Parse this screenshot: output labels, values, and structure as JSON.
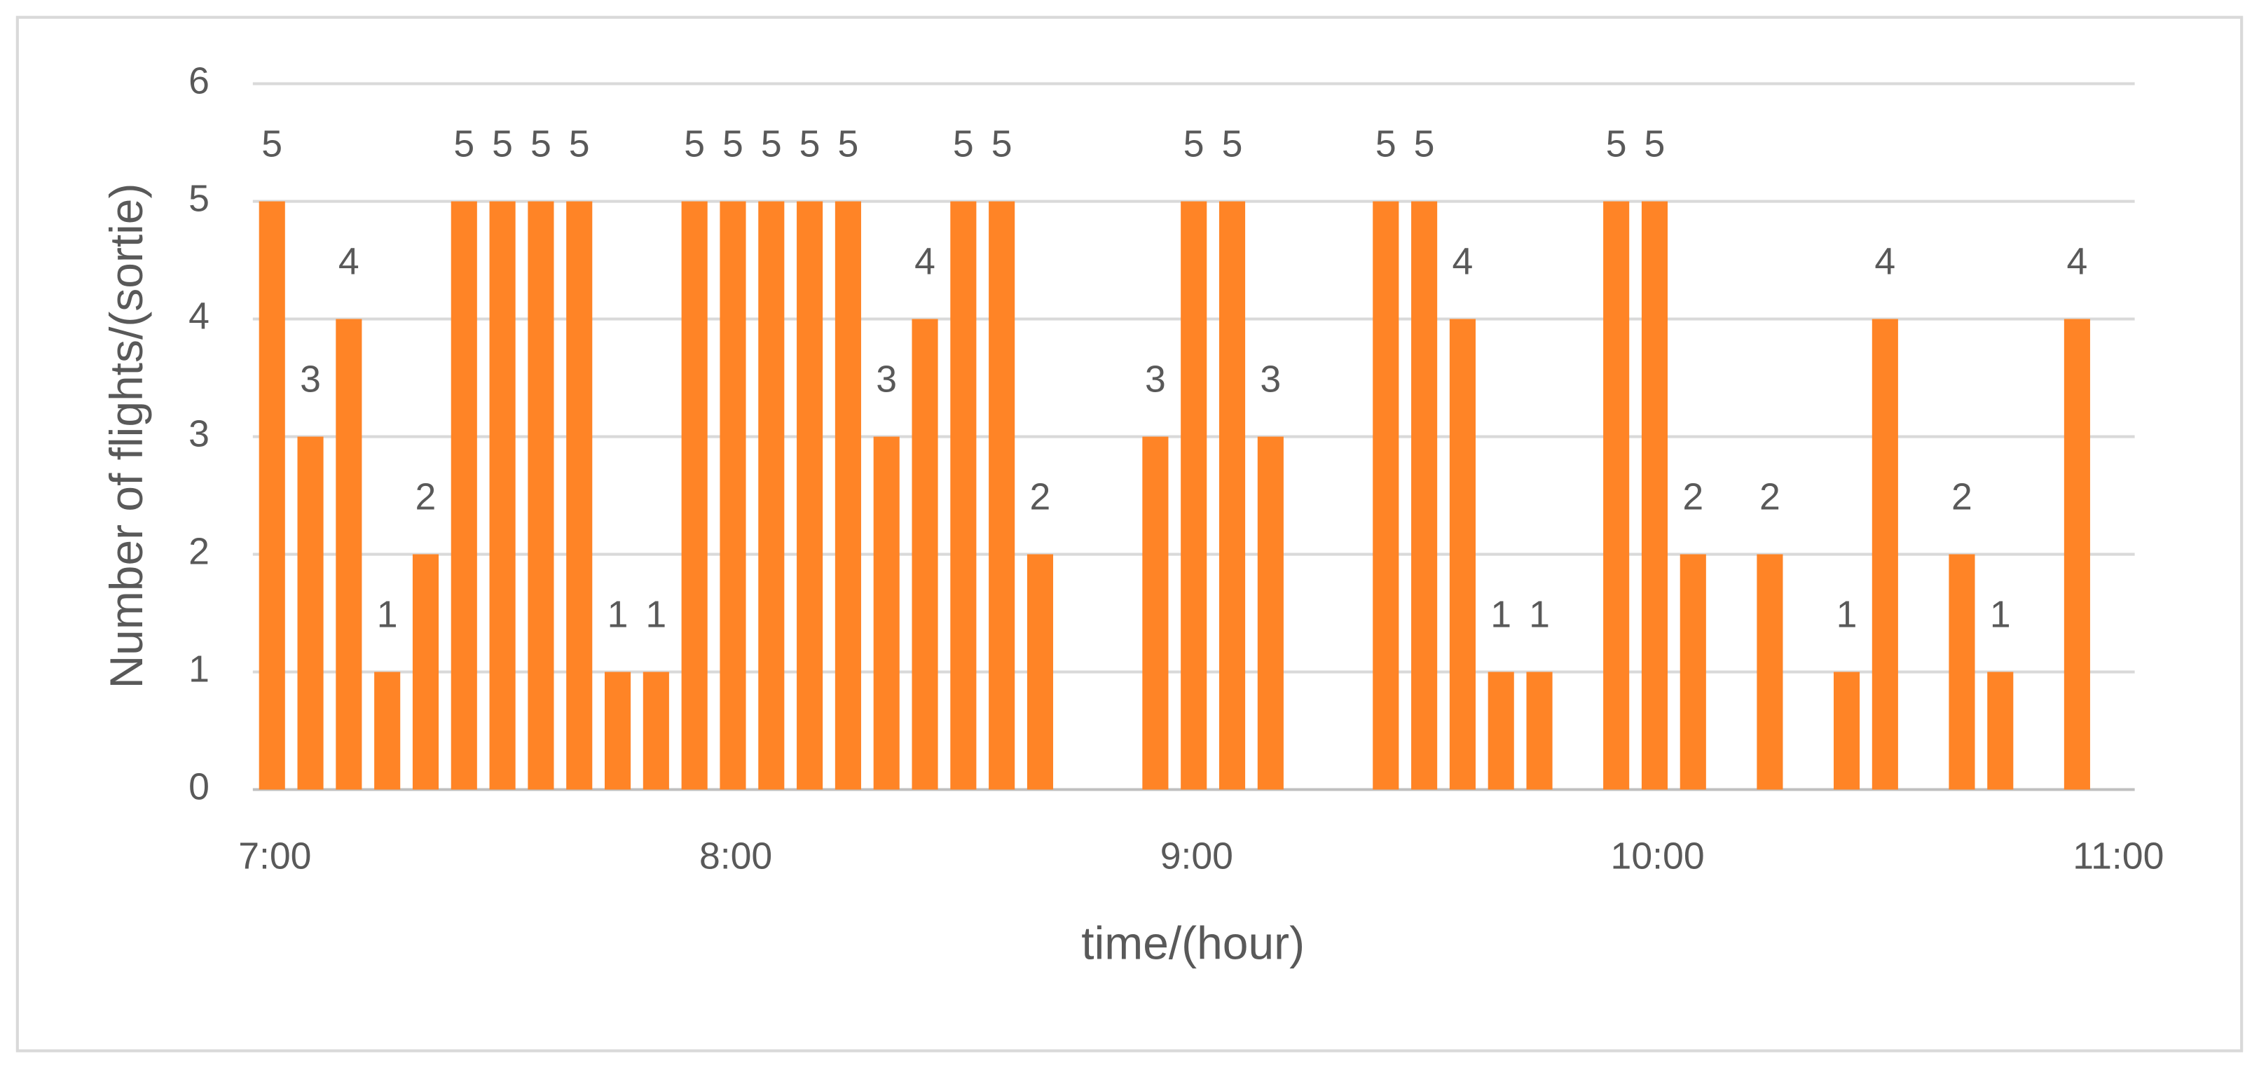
{
  "chart_data": {
    "type": "bar",
    "x_label": "time/(hour)",
    "y_label": "Number of flights/(sortie)",
    "categories": [
      "7:00",
      null,
      null,
      null,
      null,
      null,
      null,
      null,
      null,
      null,
      null,
      null,
      "8:00",
      null,
      null,
      null,
      null,
      null,
      null,
      null,
      null,
      null,
      null,
      null,
      "9:00",
      null,
      null,
      null,
      null,
      null,
      null,
      null,
      null,
      null,
      null,
      null,
      "10:00",
      null,
      null,
      null,
      null,
      null,
      null,
      null,
      null,
      null,
      null,
      null,
      "11:00"
    ],
    "values": [
      5,
      3,
      4,
      1,
      2,
      5,
      5,
      5,
      5,
      1,
      1,
      5,
      5,
      5,
      5,
      5,
      3,
      4,
      5,
      5,
      2,
      null,
      null,
      3,
      5,
      5,
      3,
      null,
      null,
      5,
      5,
      4,
      1,
      1,
      null,
      5,
      5,
      2,
      null,
      2,
      null,
      1,
      4,
      null,
      2,
      1,
      null,
      4,
      null
    ],
    "color": "#ff8426",
    "ylim": [
      0,
      6
    ],
    "yticks": [
      0,
      1,
      2,
      3,
      4,
      5,
      6
    ],
    "grid": true
  }
}
